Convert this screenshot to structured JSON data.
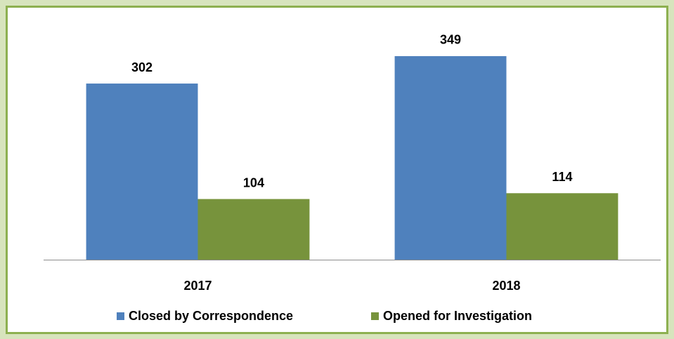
{
  "chart_data": {
    "type": "bar",
    "categories": [
      "2017",
      "2018"
    ],
    "series": [
      {
        "name": "Closed by Correspondence",
        "color": "#4f81bd",
        "values": [
          302,
          349
        ]
      },
      {
        "name": "Opened for Investigation",
        "color": "#77933c",
        "values": [
          104,
          114
        ]
      }
    ],
    "ylim": [
      0,
      400
    ],
    "legend": "bottom"
  }
}
